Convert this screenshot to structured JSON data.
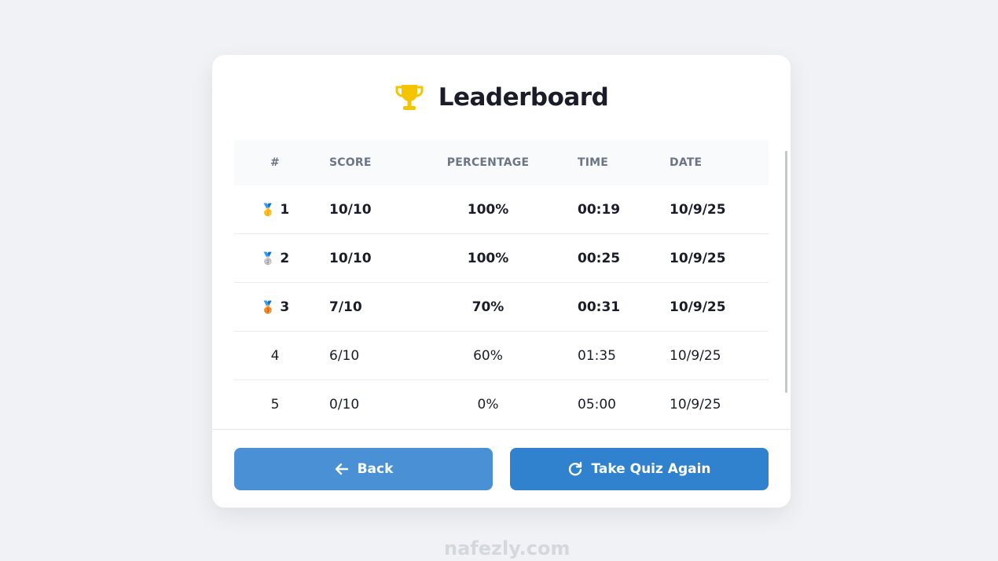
{
  "title": "Leaderboard",
  "icons": {
    "title": "trophy-icon",
    "back": "arrow-left-icon",
    "again": "refresh-icon"
  },
  "colors": {
    "trophy": "#f5c400",
    "back_button": "#4a90d4",
    "again_button": "#3182ce"
  },
  "table": {
    "headers": [
      "#",
      "SCORE",
      "PERCENTAGE",
      "TIME",
      "DATE"
    ],
    "rows": [
      {
        "rank": "1",
        "medal": "🥇",
        "score": "10/10",
        "percentage": "100%",
        "time": "00:19",
        "date": "10/9/25"
      },
      {
        "rank": "2",
        "medal": "🥈",
        "score": "10/10",
        "percentage": "100%",
        "time": "00:25",
        "date": "10/9/25"
      },
      {
        "rank": "3",
        "medal": "🥉",
        "score": "7/10",
        "percentage": "70%",
        "time": "00:31",
        "date": "10/9/25"
      },
      {
        "rank": "4",
        "score": "6/10",
        "percentage": "60%",
        "time": "01:35",
        "date": "10/9/25"
      },
      {
        "rank": "5",
        "score": "0/10",
        "percentage": "0%",
        "time": "05:00",
        "date": "10/9/25"
      }
    ]
  },
  "buttons": {
    "back": "Back",
    "again": "Take Quiz Again"
  },
  "watermark": "nafezly.com"
}
